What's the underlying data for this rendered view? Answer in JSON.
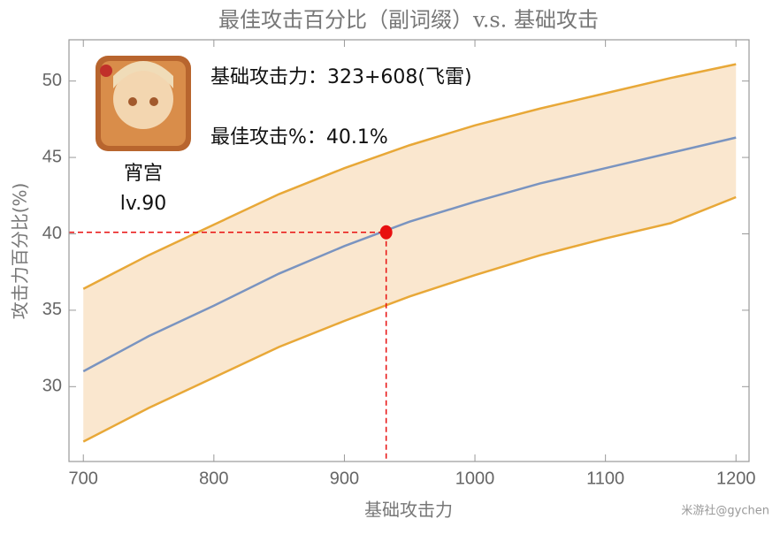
{
  "chart_data": {
    "type": "line",
    "title": "最佳攻击百分比（副词缀）v.s. 基础攻击",
    "x_label": "基础攻击力",
    "y_label": "攻击力百分比(%)",
    "x": [
      700,
      750,
      800,
      850,
      900,
      950,
      1000,
      1050,
      1100,
      1150,
      1200
    ],
    "series": [
      {
        "name": "upper",
        "color": "#e8a838",
        "values": [
          36.4,
          38.6,
          40.6,
          42.6,
          44.3,
          45.8,
          47.1,
          48.2,
          49.2,
          50.2,
          51.1
        ]
      },
      {
        "name": "best",
        "color": "#7a94c0",
        "values": [
          31.0,
          33.3,
          35.3,
          37.4,
          39.2,
          40.8,
          42.1,
          43.3,
          44.3,
          45.3,
          46.3
        ]
      },
      {
        "name": "lower",
        "color": "#e8a838",
        "values": [
          26.4,
          28.6,
          30.6,
          32.6,
          34.3,
          35.9,
          37.3,
          38.6,
          39.7,
          40.7,
          42.4
        ]
      }
    ],
    "band_color": "#fae7cf",
    "point": {
      "x": 932,
      "y": 40.1,
      "color": "#e81010"
    },
    "xlim": [
      689,
      1210
    ],
    "ylim": [
      25.1,
      52.7
    ],
    "xticks": [
      700,
      800,
      900,
      1000,
      1100,
      1200
    ],
    "yticks": [
      30,
      35,
      40,
      45,
      50
    ],
    "annotations": {
      "base_atk": "基础攻击力：323+608(飞雷)",
      "best_pct": "最佳攻击%：40.1%",
      "character": "宵宫",
      "level": "lv.90"
    },
    "watermark": "米游社@gychen"
  }
}
